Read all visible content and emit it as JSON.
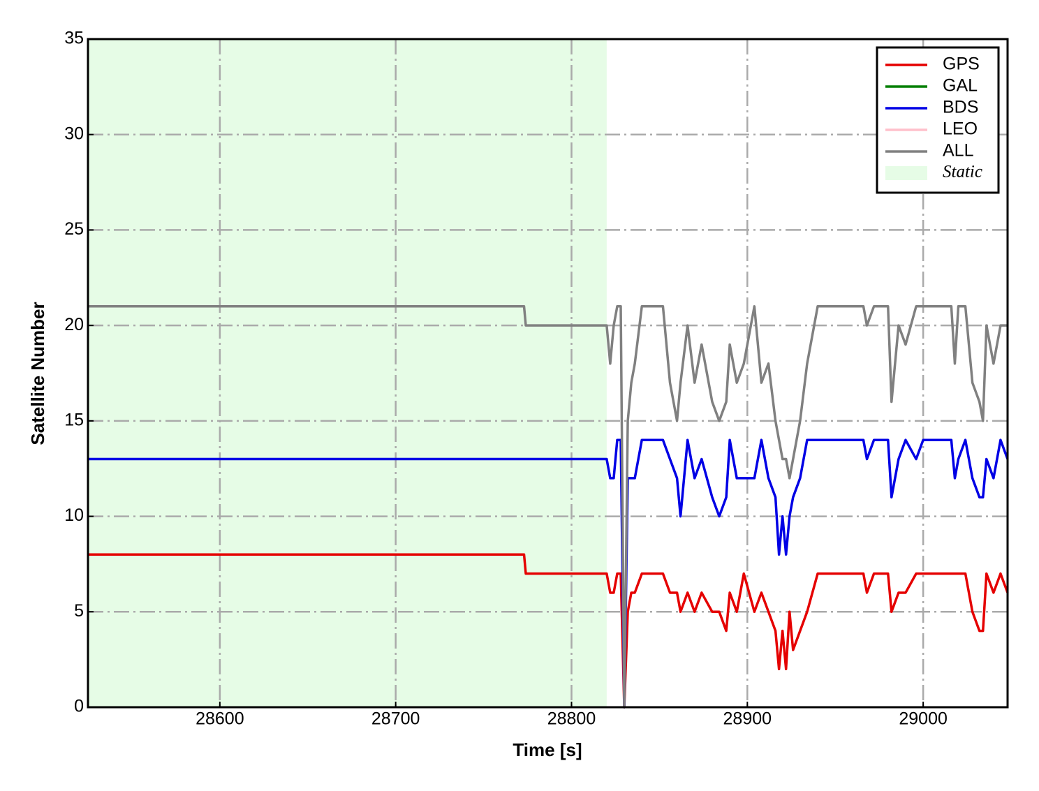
{
  "chart_data": {
    "type": "line",
    "x_label": "Time [s]",
    "y_label": "Satellite Number",
    "xlim": [
      28525,
      29048
    ],
    "ylim": [
      0,
      35
    ],
    "xticks": [
      28600,
      28700,
      28800,
      28900,
      29000
    ],
    "yticks": [
      0,
      5,
      10,
      15,
      20,
      25,
      30,
      35
    ],
    "grid": true,
    "legend": "upper right",
    "span": {
      "name": "Static",
      "color": "#e6fce6",
      "x": [
        28525,
        28820
      ]
    },
    "x": [
      28525,
      28773,
      28774,
      28820,
      28822,
      28824,
      28826,
      28828,
      28830,
      28832,
      28834,
      28836,
      28840,
      28852,
      28856,
      28860,
      28862,
      28866,
      28870,
      28874,
      28880,
      28884,
      28888,
      28890,
      28894,
      28898,
      28904,
      28908,
      28912,
      28916,
      28918,
      28920,
      28922,
      28924,
      28926,
      28930,
      28934,
      28940,
      28950,
      28966,
      28968,
      28972,
      28980,
      28982,
      28986,
      28990,
      28996,
      29000,
      29016,
      29018,
      29020,
      29024,
      29028,
      29032,
      29034,
      29036,
      29040,
      29044,
      29048
    ],
    "series": [
      {
        "name": "GPS",
        "color": "#e50000",
        "values": [
          8,
          8,
          7,
          7,
          6,
          6,
          7,
          7,
          0,
          5,
          6,
          6,
          7,
          7,
          6,
          6,
          5,
          6,
          5,
          6,
          5,
          5,
          4,
          6,
          5,
          7,
          5,
          6,
          5,
          4,
          2,
          4,
          2,
          5,
          3,
          4,
          5,
          7,
          7,
          7,
          6,
          7,
          7,
          5,
          6,
          6,
          7,
          7,
          7,
          7,
          7,
          7,
          5,
          4,
          4,
          7,
          6,
          7,
          6
        ]
      },
      {
        "name": "GAL",
        "color": "#007f00",
        "values": [
          null,
          null,
          null,
          null,
          null,
          null,
          null,
          null,
          null,
          null,
          null,
          null,
          null,
          null,
          null,
          null,
          null,
          null,
          null,
          null,
          null,
          null,
          null,
          null,
          null,
          null,
          null,
          null,
          null,
          null,
          null,
          null,
          null,
          null,
          null,
          null,
          null,
          null,
          null,
          null,
          null,
          null,
          null,
          null,
          null,
          null,
          null,
          null,
          null,
          null,
          null,
          null,
          null,
          null,
          null,
          null,
          null,
          null,
          null
        ]
      },
      {
        "name": "BDS",
        "color": "#0000e5",
        "values": [
          13,
          13,
          13,
          13,
          12,
          12,
          14,
          14,
          0,
          12,
          12,
          12,
          14,
          14,
          13,
          12,
          10,
          14,
          12,
          13,
          11,
          10,
          11,
          14,
          12,
          12,
          12,
          14,
          12,
          11,
          8,
          10,
          8,
          10,
          11,
          12,
          14,
          14,
          14,
          14,
          13,
          14,
          14,
          11,
          13,
          14,
          13,
          14,
          14,
          12,
          13,
          14,
          12,
          11,
          11,
          13,
          12,
          14,
          13
        ]
      },
      {
        "name": "LEO",
        "color": "#ffc0cb",
        "values": [
          null,
          null,
          null,
          null,
          null,
          null,
          null,
          null,
          null,
          null,
          null,
          null,
          null,
          null,
          null,
          null,
          null,
          null,
          null,
          null,
          null,
          null,
          null,
          null,
          null,
          null,
          null,
          null,
          null,
          null,
          null,
          null,
          null,
          null,
          null,
          null,
          null,
          null,
          null,
          null,
          null,
          null,
          null,
          null,
          null,
          null,
          null,
          null,
          null,
          null,
          null,
          null,
          null,
          null,
          null,
          null,
          null,
          null,
          null
        ]
      },
      {
        "name": "ALL",
        "color": "#808080",
        "values": [
          21,
          21,
          20,
          20,
          18,
          20,
          21,
          21,
          0,
          15,
          17,
          18,
          21,
          21,
          17,
          15,
          17,
          20,
          17,
          19,
          16,
          15,
          16,
          19,
          17,
          18,
          21,
          17,
          18,
          15,
          14,
          13,
          13,
          12,
          13,
          15,
          18,
          21,
          21,
          21,
          20,
          21,
          21,
          16,
          20,
          19,
          21,
          21,
          21,
          18,
          21,
          21,
          17,
          16,
          15,
          20,
          18,
          20,
          20
        ]
      }
    ]
  }
}
